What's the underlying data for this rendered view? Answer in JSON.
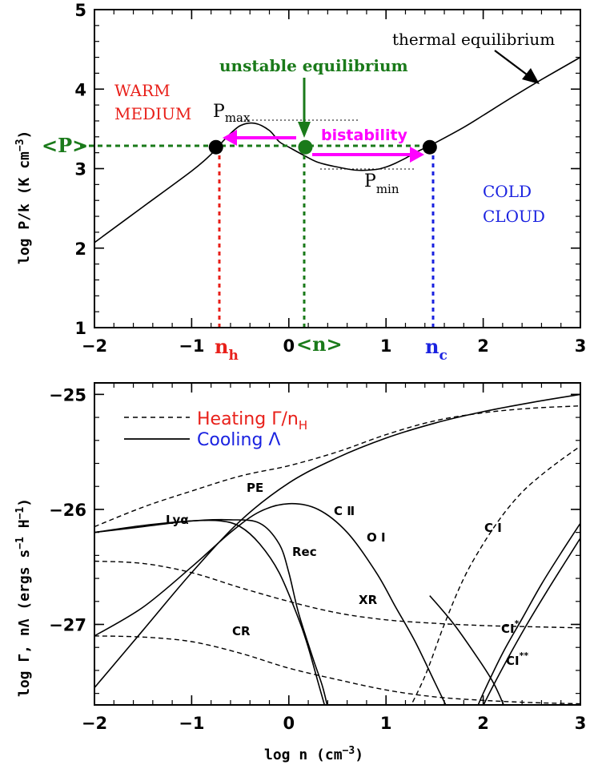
{
  "colors": {
    "red": "#e8201a",
    "green": "#1a7a1a",
    "blue": "#1a22e0",
    "magenta": "#ff00ff",
    "black": "#000000"
  },
  "chart_data": [
    {
      "type": "line",
      "title": "",
      "xlabel": "",
      "ylabel": "log P/k (K cm",
      "ylabel_sup": "−3",
      "ylabel_close": ")",
      "xlim": [
        -2,
        3
      ],
      "ylim": [
        1,
        5
      ],
      "xticks": [
        -2,
        -1,
        0,
        1,
        2,
        3
      ],
      "yticks": [
        1,
        2,
        3,
        4,
        5
      ],
      "series": [
        {
          "name": "thermal equilibrium",
          "x": [
            -2,
            -1.5,
            -1,
            -0.8,
            -0.65,
            -0.5,
            -0.35,
            -0.2,
            -0.1,
            0.0,
            0.15,
            0.3,
            0.5,
            0.7,
            0.9,
            1.0,
            1.1,
            1.2,
            1.3,
            1.4,
            1.5,
            1.8,
            2.0,
            2.3,
            2.6,
            3.0
          ],
          "y": [
            2.07,
            2.52,
            2.97,
            3.18,
            3.38,
            3.54,
            3.57,
            3.48,
            3.34,
            3.27,
            3.17,
            3.08,
            3.02,
            2.98,
            2.99,
            3.02,
            3.07,
            3.13,
            3.2,
            3.26,
            3.32,
            3.52,
            3.67,
            3.9,
            4.12,
            4.4
          ]
        }
      ],
      "points": [
        {
          "label": "n_h",
          "x": -0.75,
          "y": 3.27
        },
        {
          "label": "<n>",
          "x": 0.17,
          "y": 3.27
        },
        {
          "label": "n_c",
          "x": 1.45,
          "y": 3.27
        }
      ],
      "annotations": {
        "thermal_equilibrium": "thermal equilibrium",
        "unstable": "unstable equilibrium",
        "warm_line1": "WARM",
        "warm_line2": "MEDIUM",
        "cold_line1": "COLD",
        "cold_line2": "CLOUD",
        "bistability": "bistability",
        "pmax": "P",
        "pmax_sub": "max",
        "pmin": "P",
        "pmin_sub": "min",
        "pmean": "<P>",
        "nh": "n",
        "nh_sub": "h",
        "nmean": "<n>",
        "nc": "n",
        "nc_sub": "c"
      }
    },
    {
      "type": "line",
      "title": "",
      "xlabel": "log n (cm",
      "xlabel_sup": "−3",
      "xlabel_close": ")",
      "ylabel": "log Γ, nΛ (ergs s",
      "ylabel_sup1": "−1",
      "ylabel_mid": " H",
      "ylabel_sup2": "−1",
      "ylabel_close": ")",
      "xlim": [
        -2,
        3
      ],
      "ylim": [
        -27.7,
        -24.9
      ],
      "xticks": [
        -2,
        -1,
        0,
        1,
        2,
        3
      ],
      "yticks": [
        -27,
        -26,
        -25
      ],
      "legend": {
        "heating": "Heating Γ/n",
        "heating_sub": "H",
        "cooling": "Cooling Λ"
      },
      "series": [
        {
          "name": "PE",
          "style": "dashed",
          "x": [
            -2,
            -1.5,
            -1,
            -0.5,
            0,
            0.5,
            1,
            1.5,
            2,
            2.5,
            3
          ],
          "y": [
            -26.15,
            -25.98,
            -25.84,
            -25.71,
            -25.62,
            -25.5,
            -25.35,
            -25.23,
            -25.16,
            -25.12,
            -25.1
          ]
        },
        {
          "name": "C II",
          "style": "solid",
          "x": [
            -2,
            -1.5,
            -1,
            -0.5,
            0,
            0.5,
            1,
            1.5,
            2,
            2.5,
            3
          ],
          "y": [
            -27.55,
            -27.05,
            -26.55,
            -26.1,
            -25.77,
            -25.55,
            -25.38,
            -25.25,
            -25.15,
            -25.07,
            -25.0
          ]
        },
        {
          "name": "Lyα",
          "style": "solid",
          "x": [
            -2,
            -1.5,
            -1,
            -0.7,
            -0.5,
            -0.3,
            -0.1,
            0.1,
            0.2,
            0.3,
            0.4
          ],
          "y": [
            -26.2,
            -26.14,
            -26.1,
            -26.1,
            -26.15,
            -26.3,
            -26.55,
            -26.95,
            -27.2,
            -27.5,
            -27.8
          ]
        },
        {
          "name": "Rec",
          "style": "solid",
          "x": [
            -2,
            -1.5,
            -1,
            -0.6,
            -0.3,
            -0.1,
            0.0,
            0.1,
            0.25,
            0.35,
            0.42
          ],
          "y": [
            -26.2,
            -26.15,
            -26.1,
            -26.09,
            -26.12,
            -26.3,
            -26.55,
            -26.9,
            -27.3,
            -27.55,
            -27.8
          ]
        },
        {
          "name": "O I",
          "style": "solid",
          "x": [
            -2,
            -1.5,
            -1,
            -0.6,
            -0.3,
            0,
            0.3,
            0.6,
            0.9,
            1.1,
            1.3,
            1.5,
            1.7
          ],
          "y": [
            -27.1,
            -26.85,
            -26.5,
            -26.2,
            -26.02,
            -25.95,
            -26.0,
            -26.2,
            -26.55,
            -26.85,
            -27.15,
            -27.5,
            -27.85
          ]
        },
        {
          "name": "XR",
          "style": "dashed",
          "x": [
            -2,
            -1.5,
            -1,
            -0.5,
            0,
            0.5,
            1,
            1.5,
            2,
            2.5,
            3
          ],
          "y": [
            -26.45,
            -26.47,
            -26.55,
            -26.68,
            -26.8,
            -26.9,
            -26.96,
            -26.99,
            -27.01,
            -27.02,
            -27.03
          ]
        },
        {
          "name": "CR",
          "style": "dashed",
          "x": [
            -2,
            -1.5,
            -1,
            -0.5,
            0,
            0.5,
            1,
            1.5,
            2,
            2.5,
            3
          ],
          "y": [
            -27.1,
            -27.11,
            -27.15,
            -27.25,
            -27.38,
            -27.48,
            -27.57,
            -27.63,
            -27.66,
            -27.68,
            -27.69
          ]
        },
        {
          "name": "C I",
          "style": "dashed",
          "x": [
            1.2,
            1.4,
            1.6,
            1.8,
            2.0,
            2.2,
            2.4,
            2.6,
            2.8,
            3.0
          ],
          "y": [
            -27.8,
            -27.45,
            -27.0,
            -26.6,
            -26.3,
            -26.05,
            -25.85,
            -25.7,
            -25.57,
            -25.45
          ]
        },
        {
          "name": "CI*",
          "style": "solid",
          "x": [
            1.9,
            2.0,
            2.2,
            2.4,
            2.6,
            2.8,
            3.0
          ],
          "y": [
            -27.8,
            -27.6,
            -27.25,
            -26.95,
            -26.65,
            -26.38,
            -26.12
          ]
        },
        {
          "name": "CI**",
          "style": "solid",
          "x": [
            1.95,
            2.05,
            2.25,
            2.45,
            2.65,
            2.85,
            3.0
          ],
          "y": [
            -27.8,
            -27.62,
            -27.3,
            -27.0,
            -26.72,
            -26.45,
            -26.25
          ]
        },
        {
          "name": "steep",
          "style": "solid",
          "x": [
            1.45,
            1.7,
            1.95,
            2.1,
            2.2,
            2.25
          ],
          "y": [
            -26.75,
            -27.0,
            -27.3,
            -27.5,
            -27.68,
            -27.8
          ]
        }
      ],
      "curve_labels": {
        "pe": "PE",
        "cii": "C Ⅱ",
        "lya": "Lyα",
        "rec": "Rec",
        "oi": "O I",
        "ci": "C I",
        "xr": "XR",
        "cr": "CR",
        "cistar": "CI",
        "cistar_sup": "*",
        "cistar2": "CI",
        "cistar2_sup": "**"
      }
    }
  ]
}
